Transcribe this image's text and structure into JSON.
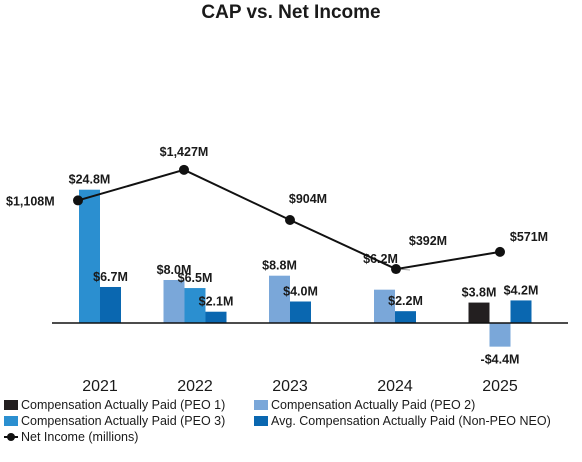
{
  "chart_data": {
    "type": "bar",
    "title": "CAP vs. Net Income",
    "categories": [
      "2021",
      "2022",
      "2023",
      "2024",
      "2025"
    ],
    "series": [
      {
        "name": "Compensation Actually Paid (PEO 1)",
        "color": "#231f20",
        "values": [
          null,
          null,
          null,
          null,
          3.8
        ],
        "labels": [
          null,
          null,
          null,
          null,
          "$3.8M"
        ]
      },
      {
        "name": "Compensation Actually Paid (PEO 2)",
        "color": "#7aa7d9",
        "values": [
          null,
          8.0,
          8.8,
          6.2,
          -4.4
        ],
        "labels": [
          null,
          "$8.0M",
          "$8.8M",
          "$6.2M",
          "-$4.4M"
        ]
      },
      {
        "name": "Compensation Actually Paid (PEO 3)",
        "color": "#2b8fd0",
        "values": [
          24.8,
          6.5,
          null,
          null,
          null
        ],
        "labels": [
          "$24.8M",
          "$6.5M",
          null,
          null,
          null
        ]
      },
      {
        "name": "Avg. Compensation Actually Paid (Non-PEO NEO)",
        "color": "#0a67b0",
        "values": [
          6.7,
          2.1,
          4.0,
          2.2,
          4.2
        ],
        "labels": [
          "$6.7M",
          "$2.1M",
          "$4.0M",
          "$2.2M",
          "$4.2M"
        ]
      }
    ],
    "line": {
      "name": "Net Income (millions)",
      "color": "#111111",
      "values": [
        1108,
        1427,
        904,
        392,
        571
      ],
      "labels": [
        "$1,108M",
        "$1,427M",
        "$904M",
        "$392M",
        "$571M"
      ]
    },
    "bar_ylim": [
      -6,
      26
    ],
    "line_ylim": [
      -1600,
      2260
    ],
    "xlabel": "",
    "ylabel": "",
    "grid": false,
    "legend_position": "bottom"
  }
}
